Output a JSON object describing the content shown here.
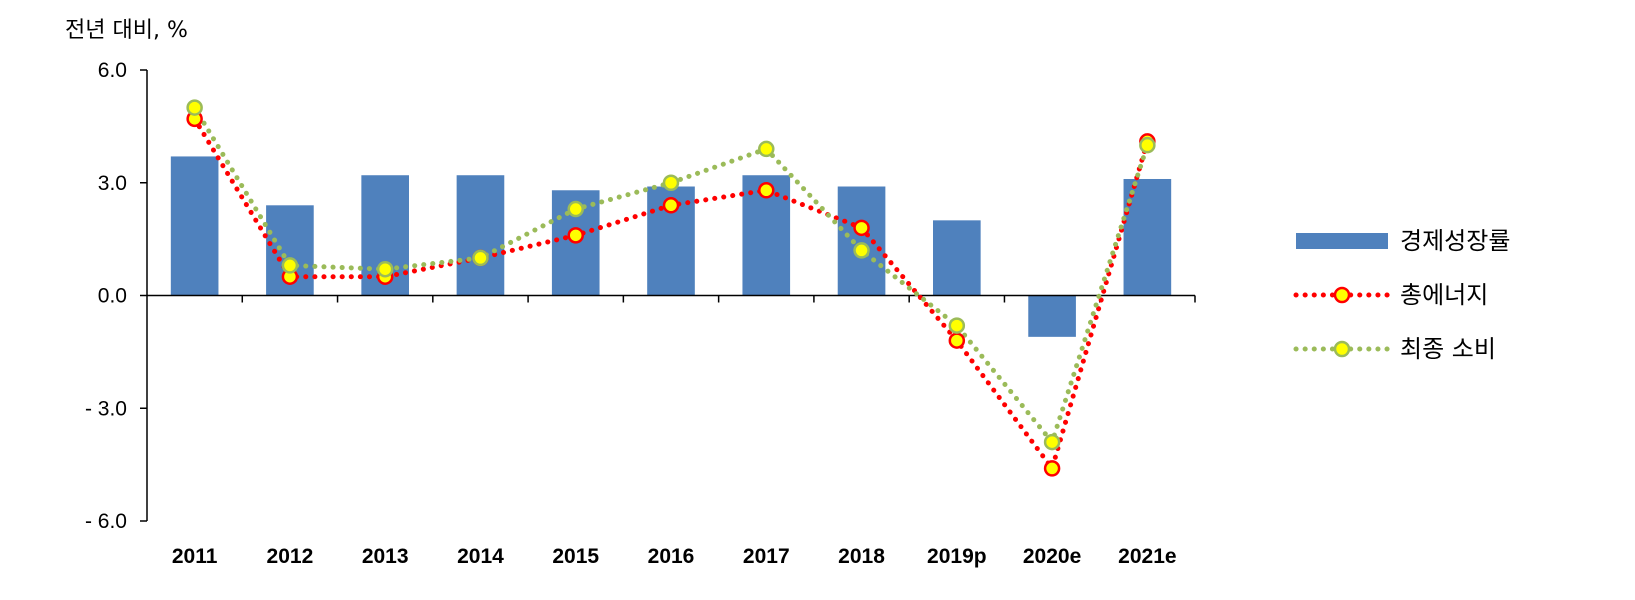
{
  "chart_data": {
    "type": "bar",
    "unit_label": "전년 대비, %",
    "categories": [
      "2011",
      "2012",
      "2013",
      "2014",
      "2015",
      "2016",
      "2017",
      "2018",
      "2019p",
      "2020e",
      "2021e"
    ],
    "ylim": [
      -6,
      6
    ],
    "y_ticks": [
      6,
      3,
      0,
      -3,
      -6
    ],
    "y_tick_labels": [
      "6.0",
      "3.0",
      "0.0",
      "- 3.0",
      "- 6.0"
    ],
    "grid": false,
    "legend_position": "right",
    "series": [
      {
        "name": "경제성장률",
        "kind": "bar",
        "color": "#4f81bd",
        "values": [
          3.7,
          2.4,
          3.2,
          3.2,
          2.8,
          2.9,
          3.2,
          2.9,
          2.0,
          -1.1,
          3.1
        ]
      },
      {
        "name": "총에너지",
        "kind": "line",
        "line_color": "#ff0000",
        "marker_color": "#ffff00",
        "marker_edge": "#ff0000",
        "values": [
          4.7,
          0.5,
          0.5,
          1.0,
          1.6,
          2.4,
          2.8,
          1.8,
          -1.2,
          -4.6,
          4.1
        ]
      },
      {
        "name": "최종 소비",
        "kind": "line",
        "line_color": "#9bbb59",
        "marker_color": "#ffff00",
        "marker_edge": "#9bbb59",
        "values": [
          5.0,
          0.8,
          0.7,
          1.0,
          2.3,
          3.0,
          3.9,
          1.2,
          -0.8,
          -3.9,
          4.0
        ]
      }
    ]
  }
}
